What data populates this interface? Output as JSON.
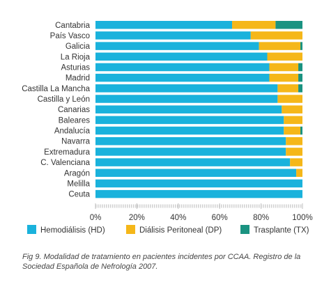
{
  "chart_data": {
    "type": "bar",
    "orientation": "horizontal",
    "stacked": true,
    "categories": [
      "Cantabria",
      "País Vasco",
      "Galicia",
      "La Rioja",
      "Asturias",
      "Madrid",
      "Castilla La Mancha",
      "Castilla y León",
      "Canarias",
      "Baleares",
      "Andalucía",
      "Navarra",
      "Extremadura",
      "C. Valenciana",
      "Aragón",
      "Melilla",
      "Ceuta"
    ],
    "series": [
      {
        "name": "Hemodiálisis (HD)",
        "color": "#1ab2dc",
        "values": [
          66,
          75,
          79,
          83,
          84,
          84,
          88,
          88,
          90,
          91,
          91,
          92,
          92,
          94,
          97,
          100,
          100
        ]
      },
      {
        "name": "Diálisis Peritoneal (DP)",
        "color": "#f5b719",
        "values": [
          21,
          25,
          20,
          17,
          14,
          14,
          10,
          12,
          10,
          9,
          8,
          8,
          8,
          6,
          3,
          0,
          0
        ]
      },
      {
        "name": "Trasplante (TX)",
        "color": "#1a9381",
        "values": [
          13,
          0,
          1,
          0,
          2,
          2,
          2,
          0,
          0,
          0,
          1,
          0,
          0,
          0,
          0,
          0,
          0
        ]
      }
    ],
    "xticks": [
      "0%",
      "20%",
      "40%",
      "60%",
      "80%",
      "100%"
    ],
    "xlim": [
      0,
      100
    ],
    "grid": false,
    "legend_position": "bottom"
  },
  "caption": "Fig 9.  Modalidad de tratamiento en pacientes incidentes por CCAA. Registro de la Sociedad Española de Nefrología 2007."
}
